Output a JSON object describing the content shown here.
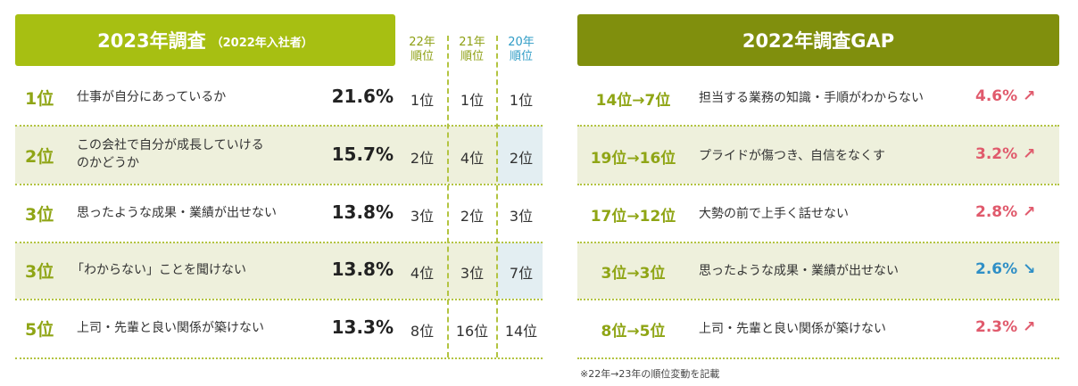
{
  "left": {
    "title": "2023年調査",
    "subtitle": "（2022年入社者）",
    "col_headers": [
      {
        "line1": "22年",
        "line2": "順位"
      },
      {
        "line1": "21年",
        "line2": "順位"
      },
      {
        "line1": "20年",
        "line2": "順位"
      }
    ],
    "rows": [
      {
        "rank": "1位",
        "label": "仕事が自分にあっているか",
        "label2": "",
        "pct": "21.6%",
        "r22": "1位",
        "r21": "1位",
        "r20": "1位"
      },
      {
        "rank": "2位",
        "label": "この会社で自分が成長していける",
        "label2": "のかどうか",
        "pct": "15.7%",
        "r22": "2位",
        "r21": "4位",
        "r20": "2位"
      },
      {
        "rank": "3位",
        "label": "思ったような成果・業績が出せない",
        "label2": "",
        "pct": "13.8%",
        "r22": "3位",
        "r21": "2位",
        "r20": "3位"
      },
      {
        "rank": "3位",
        "label": "「わからない」ことを聞けない",
        "label2": "",
        "pct": "13.8%",
        "r22": "4位",
        "r21": "3位",
        "r20": "7位"
      },
      {
        "rank": "5位",
        "label": "上司・先輩と良い関係が築けない",
        "label2": "",
        "pct": "13.3%",
        "r22": "8位",
        "r21": "16位",
        "r20": "14位"
      }
    ]
  },
  "right": {
    "title": "2022年調査GAP",
    "rows": [
      {
        "rank": "14位→7位",
        "label": "担当する業務の知識・手順がわからない",
        "pct": "4.6%",
        "arrow": "↗",
        "dir": "up"
      },
      {
        "rank": "19位→16位",
        "label": "プライドが傷つき、自信をなくす",
        "pct": "3.2%",
        "arrow": "↗",
        "dir": "up"
      },
      {
        "rank": "17位→12位",
        "label": "大勢の前で上手く話せない",
        "pct": "2.8%",
        "arrow": "↗",
        "dir": "up"
      },
      {
        "rank": "3位→3位",
        "label": "思ったような成果・業績が出せない",
        "pct": "2.6%",
        "arrow": "↘",
        "dir": "down"
      },
      {
        "rank": "8位→5位",
        "label": "上司・先輩と良い関係が築けない",
        "pct": "2.3%",
        "arrow": "↗",
        "dir": "up"
      }
    ],
    "note": "※22年→23年の順位変動を記載"
  },
  "colors": {
    "left_header": "#a7bf12",
    "right_header": "#808f0d",
    "rank_green": "#8fa515",
    "band": "#eef0dc",
    "highlight_blue": "#e3eef2",
    "up_red": "#e05a6c",
    "down_blue": "#2f8fc6"
  }
}
